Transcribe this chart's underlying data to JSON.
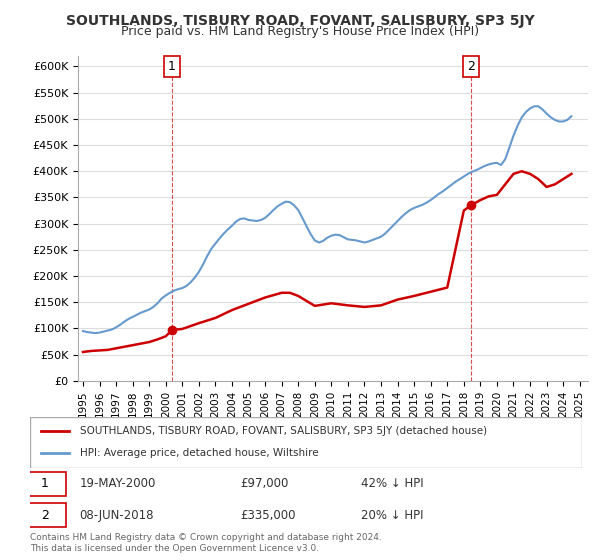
{
  "title": "SOUTHLANDS, TISBURY ROAD, FOVANT, SALISBURY, SP3 5JY",
  "subtitle": "Price paid vs. HM Land Registry's House Price Index (HPI)",
  "ylabel_ticks": [
    "£0",
    "£50K",
    "£100K",
    "£150K",
    "£200K",
    "£250K",
    "£300K",
    "£350K",
    "£400K",
    "£450K",
    "£500K",
    "£550K",
    "£600K"
  ],
  "ylim": [
    0,
    620000
  ],
  "xlim_start": 1995.0,
  "xlim_end": 2025.5,
  "sale1_x": 2000.38,
  "sale1_y": 97000,
  "sale1_label": "1",
  "sale1_date": "19-MAY-2000",
  "sale1_price": "£97,000",
  "sale1_hpi": "42% ↓ HPI",
  "sale2_x": 2018.44,
  "sale2_y": 335000,
  "sale2_label": "2",
  "sale2_date": "08-JUN-2018",
  "sale2_price": "£335,000",
  "sale2_hpi": "20% ↓ HPI",
  "property_color": "#cc0000",
  "hpi_color": "#6699cc",
  "legend_property": "SOUTHLANDS, TISBURY ROAD, FOVANT, SALISBURY, SP3 5JY (detached house)",
  "legend_hpi": "HPI: Average price, detached house, Wiltshire",
  "footer": "Contains HM Land Registry data © Crown copyright and database right 2024.\nThis data is licensed under the Open Government Licence v3.0.",
  "hpi_data_x": [
    1995.0,
    1995.25,
    1995.5,
    1995.75,
    1996.0,
    1996.25,
    1996.5,
    1996.75,
    1997.0,
    1997.25,
    1997.5,
    1997.75,
    1998.0,
    1998.25,
    1998.5,
    1998.75,
    1999.0,
    1999.25,
    1999.5,
    1999.75,
    2000.0,
    2000.25,
    2000.5,
    2000.75,
    2001.0,
    2001.25,
    2001.5,
    2001.75,
    2002.0,
    2002.25,
    2002.5,
    2002.75,
    2003.0,
    2003.25,
    2003.5,
    2003.75,
    2004.0,
    2004.25,
    2004.5,
    2004.75,
    2005.0,
    2005.25,
    2005.5,
    2005.75,
    2006.0,
    2006.25,
    2006.5,
    2006.75,
    2007.0,
    2007.25,
    2007.5,
    2007.75,
    2008.0,
    2008.25,
    2008.5,
    2008.75,
    2009.0,
    2009.25,
    2009.5,
    2009.75,
    2010.0,
    2010.25,
    2010.5,
    2010.75,
    2011.0,
    2011.25,
    2011.5,
    2011.75,
    2012.0,
    2012.25,
    2012.5,
    2012.75,
    2013.0,
    2013.25,
    2013.5,
    2013.75,
    2014.0,
    2014.25,
    2014.5,
    2014.75,
    2015.0,
    2015.25,
    2015.5,
    2015.75,
    2016.0,
    2016.25,
    2016.5,
    2016.75,
    2017.0,
    2017.25,
    2017.5,
    2017.75,
    2018.0,
    2018.25,
    2018.5,
    2018.75,
    2019.0,
    2019.25,
    2019.5,
    2019.75,
    2020.0,
    2020.25,
    2020.5,
    2020.75,
    2021.0,
    2021.25,
    2021.5,
    2021.75,
    2022.0,
    2022.25,
    2022.5,
    2022.75,
    2023.0,
    2023.25,
    2023.5,
    2023.75,
    2024.0,
    2024.25,
    2024.5
  ],
  "hpi_data_y": [
    95000,
    93000,
    92000,
    91000,
    92000,
    94000,
    96000,
    98000,
    102000,
    107000,
    113000,
    118000,
    122000,
    126000,
    130000,
    133000,
    136000,
    141000,
    148000,
    157000,
    163000,
    168000,
    172000,
    175000,
    177000,
    181000,
    188000,
    197000,
    208000,
    222000,
    238000,
    252000,
    262000,
    272000,
    281000,
    289000,
    296000,
    304000,
    309000,
    310000,
    307000,
    306000,
    305000,
    307000,
    311000,
    318000,
    326000,
    333000,
    338000,
    342000,
    341000,
    335000,
    326000,
    311000,
    295000,
    280000,
    268000,
    264000,
    267000,
    273000,
    277000,
    279000,
    278000,
    274000,
    270000,
    269000,
    268000,
    266000,
    264000,
    266000,
    269000,
    272000,
    275000,
    281000,
    289000,
    297000,
    305000,
    313000,
    320000,
    326000,
    330000,
    333000,
    336000,
    340000,
    345000,
    351000,
    357000,
    362000,
    368000,
    374000,
    380000,
    385000,
    390000,
    395000,
    399000,
    402000,
    406000,
    410000,
    413000,
    415000,
    416000,
    412000,
    423000,
    445000,
    468000,
    487000,
    503000,
    513000,
    520000,
    524000,
    524000,
    518000,
    510000,
    503000,
    498000,
    495000,
    495000,
    498000,
    505000
  ],
  "property_data_x": [
    1995.0,
    1995.5,
    1996.0,
    1996.5,
    1997.0,
    1997.5,
    1998.0,
    1998.5,
    1999.0,
    1999.5,
    2000.0,
    2000.38,
    2001.0,
    2002.0,
    2003.0,
    2004.0,
    2005.0,
    2005.5,
    2006.0,
    2007.0,
    2007.5,
    2008.0,
    2009.0,
    2010.0,
    2011.0,
    2012.0,
    2013.0,
    2014.0,
    2015.0,
    2016.0,
    2017.0,
    2018.0,
    2018.44,
    2019.0,
    2019.5,
    2020.0,
    2020.5,
    2021.0,
    2021.5,
    2022.0,
    2022.5,
    2023.0,
    2023.5,
    2024.0,
    2024.5
  ],
  "property_data_y": [
    55000,
    57000,
    58000,
    59000,
    62000,
    65000,
    68000,
    71000,
    74000,
    79000,
    85000,
    97000,
    99000,
    110000,
    120000,
    135000,
    147000,
    153000,
    159000,
    168000,
    168000,
    162000,
    143000,
    148000,
    144000,
    141000,
    144000,
    155000,
    162000,
    170000,
    178000,
    325000,
    335000,
    345000,
    352000,
    355000,
    375000,
    395000,
    400000,
    395000,
    385000,
    370000,
    375000,
    385000,
    395000
  ]
}
